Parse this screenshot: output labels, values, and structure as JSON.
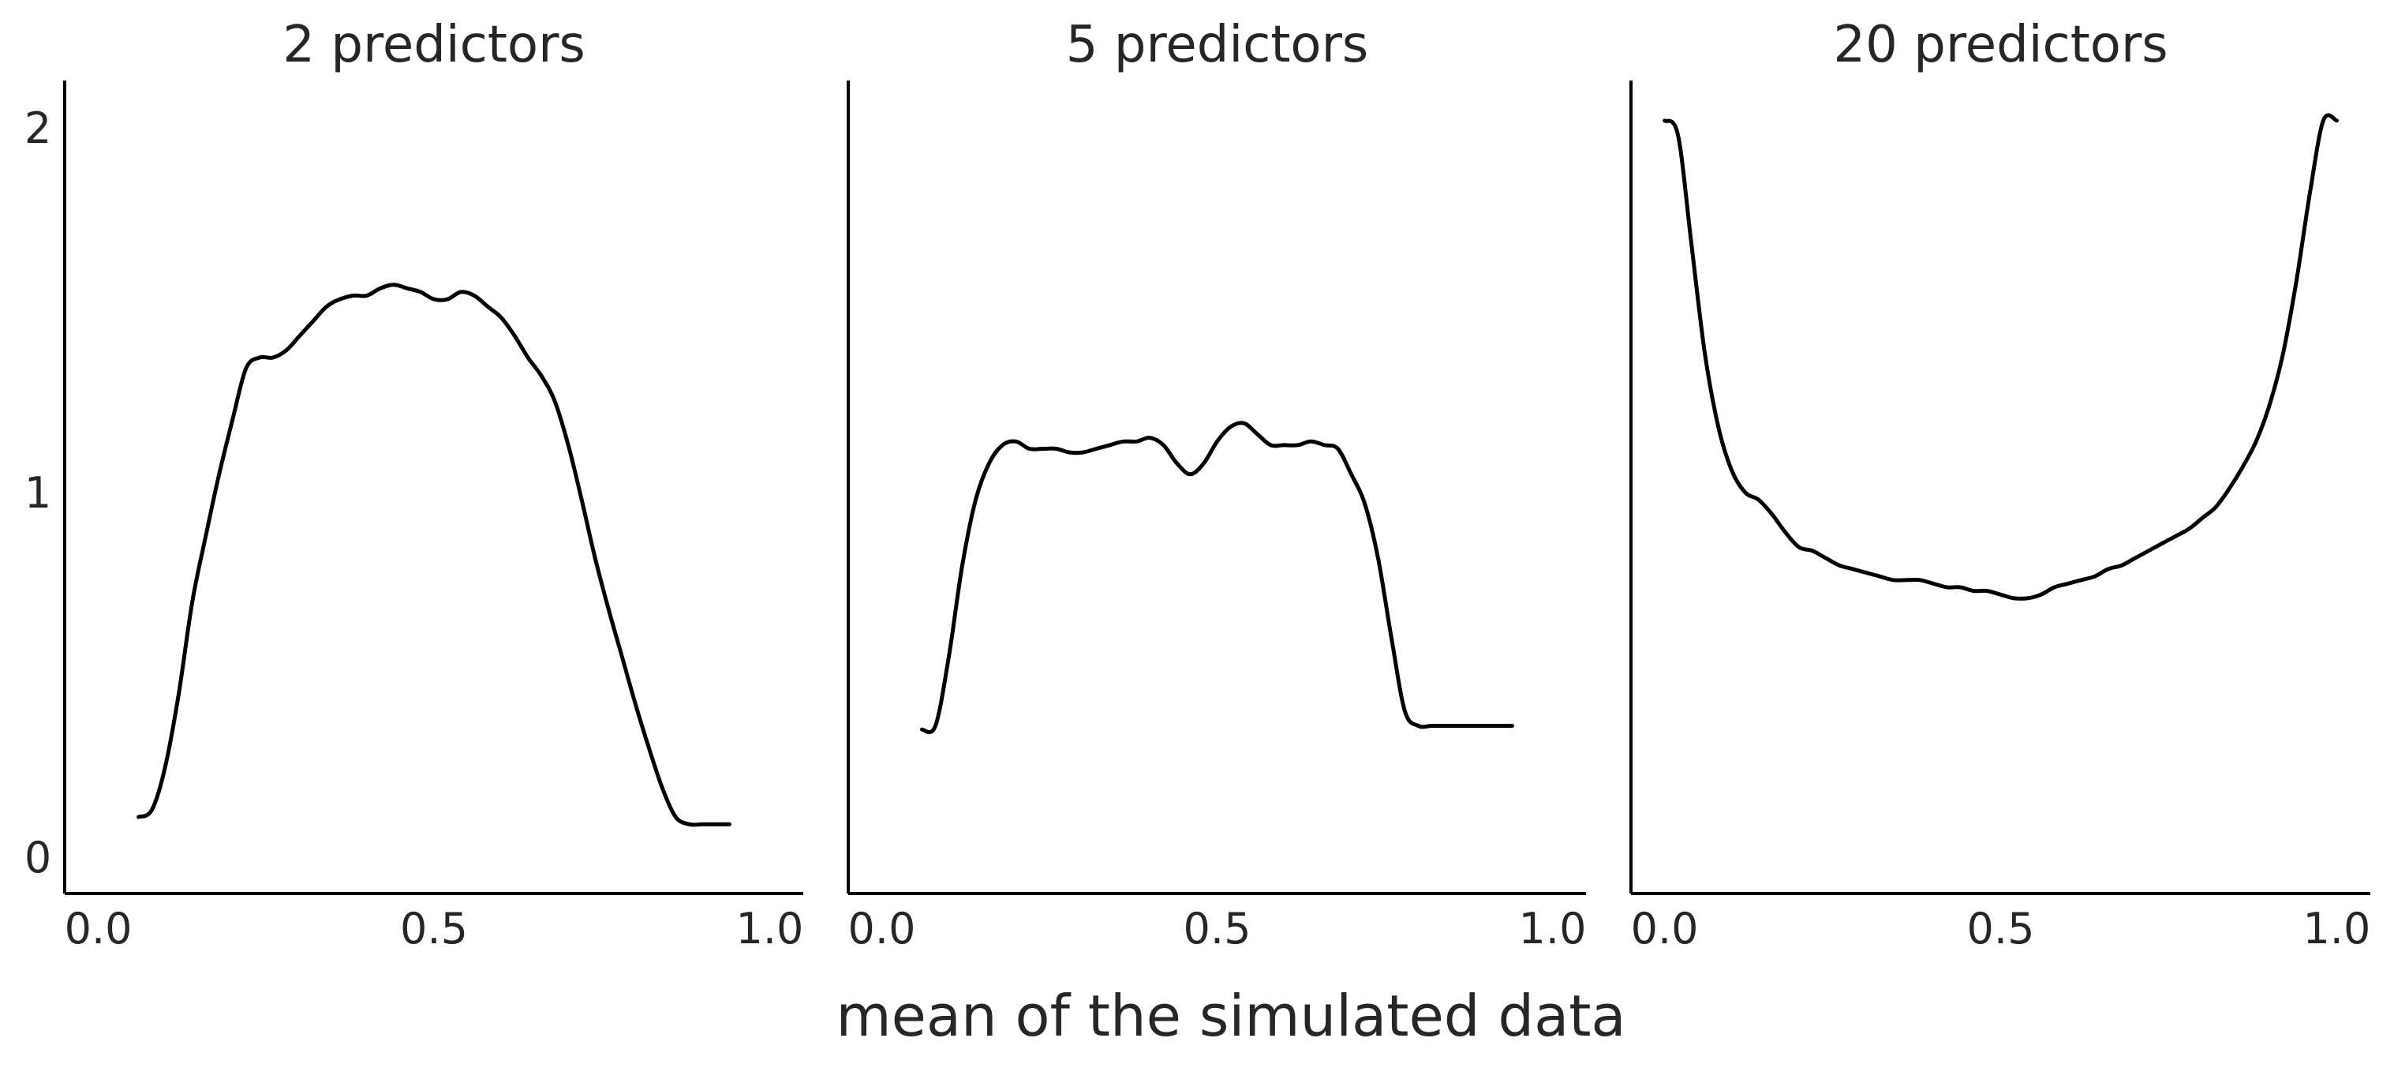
{
  "figure": {
    "xlabel": "mean of the simulated data"
  },
  "chart_data": [
    {
      "type": "line",
      "title": "2 predictors",
      "xlim": [
        -0.05,
        1.05
      ],
      "ylim": [
        -0.1,
        2.13
      ],
      "xticks": [
        0.0,
        0.5,
        1.0
      ],
      "xtick_labels": [
        "0.0",
        "0.5",
        "1.0"
      ],
      "yticks": [
        0,
        1,
        2
      ],
      "ytick_labels": [
        "0",
        "1",
        "2"
      ],
      "show_yticks": true,
      "grid": false,
      "series": [
        {
          "x": [
            0.06,
            0.08,
            0.1,
            0.12,
            0.14,
            0.16,
            0.18,
            0.2,
            0.22,
            0.24,
            0.26,
            0.28,
            0.3,
            0.32,
            0.34,
            0.36,
            0.38,
            0.4,
            0.42,
            0.44,
            0.46,
            0.48,
            0.5,
            0.52,
            0.54,
            0.56,
            0.58,
            0.6,
            0.62,
            0.64,
            0.66,
            0.68,
            0.7,
            0.72,
            0.74,
            0.76,
            0.78,
            0.8,
            0.82,
            0.84,
            0.86,
            0.88,
            0.9,
            0.92,
            0.94
          ],
          "y": [
            0.11,
            0.13,
            0.25,
            0.45,
            0.7,
            0.88,
            1.05,
            1.2,
            1.34,
            1.37,
            1.37,
            1.39,
            1.43,
            1.47,
            1.51,
            1.53,
            1.54,
            1.54,
            1.56,
            1.57,
            1.56,
            1.55,
            1.53,
            1.53,
            1.55,
            1.54,
            1.51,
            1.48,
            1.43,
            1.37,
            1.32,
            1.25,
            1.13,
            0.98,
            0.82,
            0.68,
            0.55,
            0.42,
            0.3,
            0.19,
            0.11,
            0.09,
            0.09,
            0.09,
            0.09
          ]
        }
      ]
    },
    {
      "type": "line",
      "title": "5 predictors",
      "xlim": [
        -0.05,
        1.05
      ],
      "ylim": [
        -0.1,
        2.13
      ],
      "xticks": [
        0.0,
        0.5,
        1.0
      ],
      "xtick_labels": [
        "0.0",
        "0.5",
        "1.0"
      ],
      "yticks": [
        0,
        1,
        2
      ],
      "ytick_labels": [],
      "show_yticks": false,
      "grid": false,
      "series": [
        {
          "x": [
            0.06,
            0.08,
            0.1,
            0.12,
            0.14,
            0.16,
            0.18,
            0.2,
            0.22,
            0.24,
            0.26,
            0.28,
            0.3,
            0.32,
            0.34,
            0.36,
            0.38,
            0.4,
            0.42,
            0.44,
            0.46,
            0.48,
            0.5,
            0.52,
            0.54,
            0.56,
            0.58,
            0.6,
            0.62,
            0.64,
            0.66,
            0.68,
            0.7,
            0.72,
            0.74,
            0.76,
            0.78,
            0.8,
            0.82,
            0.84,
            0.86,
            0.88,
            0.9,
            0.92,
            0.94
          ],
          "y": [
            0.35,
            0.36,
            0.55,
            0.8,
            0.98,
            1.08,
            1.13,
            1.14,
            1.12,
            1.12,
            1.12,
            1.11,
            1.11,
            1.12,
            1.13,
            1.14,
            1.14,
            1.15,
            1.13,
            1.08,
            1.05,
            1.08,
            1.14,
            1.18,
            1.19,
            1.16,
            1.13,
            1.13,
            1.13,
            1.14,
            1.13,
            1.12,
            1.05,
            0.97,
            0.82,
            0.6,
            0.4,
            0.36,
            0.36,
            0.36,
            0.36,
            0.36,
            0.36,
            0.36,
            0.36
          ]
        }
      ]
    },
    {
      "type": "line",
      "title": "20 predictors",
      "xlim": [
        -0.05,
        1.05
      ],
      "ylim": [
        -0.1,
        2.13
      ],
      "xticks": [
        0.0,
        0.5,
        1.0
      ],
      "xtick_labels": [
        "0.0",
        "0.5",
        "1.0"
      ],
      "yticks": [
        0,
        1,
        2
      ],
      "ytick_labels": [],
      "show_yticks": false,
      "grid": false,
      "series": [
        {
          "x": [
            0.0,
            0.02,
            0.04,
            0.06,
            0.08,
            0.1,
            0.12,
            0.14,
            0.16,
            0.18,
            0.2,
            0.22,
            0.24,
            0.26,
            0.28,
            0.3,
            0.32,
            0.34,
            0.36,
            0.38,
            0.4,
            0.42,
            0.44,
            0.46,
            0.48,
            0.5,
            0.52,
            0.54,
            0.56,
            0.58,
            0.6,
            0.62,
            0.64,
            0.66,
            0.68,
            0.7,
            0.72,
            0.74,
            0.76,
            0.78,
            0.8,
            0.82,
            0.84,
            0.86,
            0.88,
            0.9,
            0.92,
            0.94,
            0.96,
            0.98,
            1.0
          ],
          "y": [
            2.02,
            1.98,
            1.68,
            1.38,
            1.18,
            1.06,
            1.0,
            0.98,
            0.94,
            0.89,
            0.85,
            0.84,
            0.82,
            0.8,
            0.79,
            0.78,
            0.77,
            0.76,
            0.76,
            0.76,
            0.75,
            0.74,
            0.74,
            0.73,
            0.73,
            0.72,
            0.71,
            0.71,
            0.72,
            0.74,
            0.75,
            0.76,
            0.77,
            0.79,
            0.8,
            0.82,
            0.84,
            0.86,
            0.88,
            0.9,
            0.93,
            0.96,
            1.01,
            1.07,
            1.14,
            1.24,
            1.38,
            1.58,
            1.82,
            2.02,
            2.02
          ]
        }
      ]
    }
  ]
}
